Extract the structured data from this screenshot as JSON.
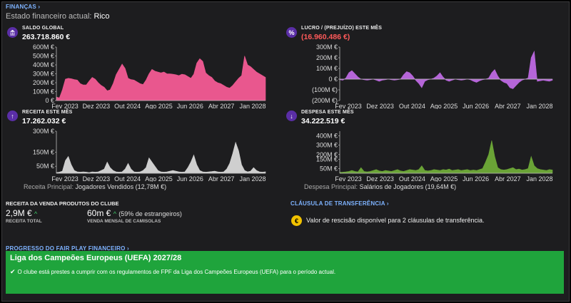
{
  "header": {
    "section_label": "FINANÇAS",
    "status_prefix": "Estado financeiro actual:",
    "status_value": "Rico"
  },
  "balance": {
    "label": "SALDO GLOBAL",
    "value": "263.718.860 €",
    "icon": "bank-icon",
    "color": "#e9578e"
  },
  "profit": {
    "label": "LUCRO / (PREJUÍZO) ESTE MÊS",
    "value": "(16.960.486 €)",
    "icon": "percent-icon",
    "color": "#b565d8"
  },
  "revenue": {
    "label": "RECEITA ESTE MÊS",
    "value": "17.262.032 €",
    "icon": "arrow-up-icon",
    "color": "#cfcfcf",
    "note_label": "Receita Principal:",
    "note_value": "Jogadores Vendidos (12,78M €)"
  },
  "expense": {
    "label": "DESPESA ESTE MÊS",
    "value": "34.222.519 €",
    "icon": "arrow-down-icon",
    "color": "#6aa336",
    "note_label": "Despesa Principal:",
    "note_value": "Salários de Jogadores (19,64M €)"
  },
  "merch": {
    "title": "RECEITA DA VENDA PRODUTOS DO CLUBE",
    "total_value": "2,9M €",
    "total_label": "RECEITA TOTAL",
    "monthly_value": "60m €",
    "monthly_note": "(59% de estrangeiros)",
    "monthly_label": "VENDA MENSAL DE CAMISOLAS"
  },
  "transfer_clause": {
    "title": "CLÁUSULA DE TRANSFERÊNCIA",
    "text": "Valor de rescisão disponível para 2 cláusulas de transferência."
  },
  "ffp": {
    "section_label": "PROGRESSO DO FAIR PLAY FINANCEIRO",
    "competition": "Liga dos Campeões Europeus (UEFA) 2027/28",
    "message": "O clube está prestes a cumprir com os regulamentos de FPF da Liga dos Campeões Europeus (UEFA) para o período actual."
  },
  "chart_data": [
    {
      "type": "area",
      "name": "balance-chart",
      "x_ticks": [
        "Fev 2023",
        "Dez 2023",
        "Out 2024",
        "Ago 2025",
        "Jun 2026",
        "Abr 2027",
        "Jan 2028"
      ],
      "y_ticks": [
        "600M €",
        "500M €",
        "400M €",
        "300M €",
        "200M €",
        "100M €",
        "0 €"
      ],
      "ylim": [
        0,
        600
      ],
      "values": [
        40,
        30,
        120,
        240,
        250,
        245,
        235,
        230,
        190,
        175,
        175,
        220,
        260,
        240,
        200,
        170,
        150,
        110,
        120,
        190,
        290,
        350,
        410,
        360,
        250,
        235,
        230,
        210,
        190,
        180,
        230,
        300,
        350,
        330,
        320,
        310,
        320,
        300,
        300,
        295,
        290,
        280,
        295,
        290,
        270,
        250,
        295,
        420,
        470,
        440,
        310,
        280,
        260,
        220,
        200,
        190,
        170,
        150,
        140,
        170,
        210,
        250,
        280,
        500,
        400,
        380,
        350,
        320,
        300,
        280,
        260
      ],
      "color": "#e9578e"
    },
    {
      "type": "area",
      "name": "profit-chart",
      "x_ticks": [
        "Fev 2023",
        "Dez 2023",
        "Out 2024",
        "Ago 2025",
        "Jun 2026",
        "Abr 2027",
        "Jan 2028"
      ],
      "y_ticks": [
        "300M €",
        "200M €",
        "100M €",
        "0 €",
        "(100M €)",
        "(200M €)"
      ],
      "ylim": [
        -200,
        300
      ],
      "values": [
        -5,
        -10,
        10,
        60,
        80,
        50,
        20,
        0,
        -5,
        -10,
        -5,
        0,
        -10,
        -20,
        -10,
        -5,
        0,
        -5,
        -10,
        -5,
        0,
        40,
        70,
        60,
        30,
        -10,
        -40,
        -80,
        -20,
        -5,
        0,
        10,
        30,
        60,
        20,
        -10,
        -20,
        -10,
        0,
        -5,
        -10,
        -5,
        0,
        -5,
        -20,
        -30,
        -15,
        -5,
        0,
        10,
        60,
        90,
        30,
        -10,
        -30,
        -40,
        -80,
        -90,
        -60,
        -30,
        -10,
        0,
        10,
        200,
        260,
        -20,
        -15,
        -10,
        -15,
        -20,
        -10
      ],
      "color": "#b565d8"
    },
    {
      "type": "area",
      "name": "revenue-chart",
      "x_ticks": [
        "Fev 2023",
        "Dez 2023",
        "Out 2024",
        "Ago 2025",
        "Jun 2026",
        "Abr 2027",
        "Jan 2028"
      ],
      "y_ticks": [
        "300M €",
        "150M €",
        "50M €"
      ],
      "ylim": [
        0,
        300
      ],
      "values": [
        5,
        8,
        15,
        90,
        120,
        60,
        20,
        10,
        8,
        10,
        8,
        5,
        10,
        8,
        10,
        20,
        30,
        80,
        40,
        20,
        10,
        8,
        10,
        30,
        70,
        30,
        10,
        8,
        10,
        20,
        40,
        110,
        80,
        50,
        20,
        10,
        8,
        10,
        15,
        20,
        15,
        10,
        8,
        10,
        40,
        80,
        130,
        60,
        20,
        10,
        8,
        10,
        12,
        15,
        10,
        8,
        10,
        30,
        70,
        140,
        220,
        160,
        60,
        20,
        10,
        15,
        40,
        20,
        10,
        8,
        10
      ],
      "color": "#cfcfcf"
    },
    {
      "type": "area",
      "name": "expense-chart",
      "x_ticks": [
        "Fev 2023",
        "Dez 2023",
        "Out 2024",
        "Ago 2025",
        "Jun 2026",
        "Abr 2027",
        "Jan 2028"
      ],
      "y_ticks": [
        "400M €",
        "300M €",
        "200M €",
        "150M €",
        "50M €"
      ],
      "ylim": [
        0,
        450
      ],
      "values": [
        10,
        12,
        15,
        20,
        30,
        20,
        15,
        60,
        20,
        15,
        20,
        30,
        40,
        25,
        20,
        30,
        25,
        20,
        30,
        40,
        25,
        20,
        30,
        40,
        35,
        30,
        40,
        80,
        30,
        25,
        30,
        40,
        35,
        30,
        40,
        35,
        45,
        30,
        35,
        40,
        30,
        35,
        40,
        30,
        35,
        30,
        40,
        50,
        120,
        200,
        350,
        180,
        60,
        40,
        35,
        40,
        50,
        60,
        40,
        45,
        35,
        40,
        50,
        180,
        80,
        50,
        40,
        35,
        30,
        40,
        35
      ],
      "color": "#6aa336"
    }
  ]
}
